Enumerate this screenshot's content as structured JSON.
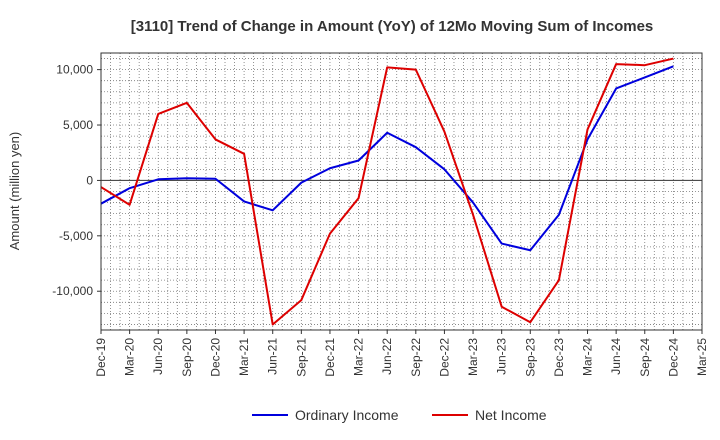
{
  "chart_data": {
    "type": "line",
    "title": "[3110]  Trend of Change in Amount (YoY) of 12Mo Moving Sum of Incomes",
    "xlabel": "",
    "ylabel": "Amount (million yen)",
    "categories": [
      "Dec-19",
      "Mar-20",
      "Jun-20",
      "Sep-20",
      "Dec-20",
      "Mar-21",
      "Jun-21",
      "Sep-21",
      "Dec-21",
      "Mar-22",
      "Jun-22",
      "Sep-22",
      "Dec-22",
      "Mar-23",
      "Jun-23",
      "Sep-23",
      "Dec-23",
      "Mar-24",
      "Jun-24",
      "Sep-24",
      "Dec-24",
      "Mar-25"
    ],
    "ylim": [
      -13500,
      11500
    ],
    "yticks": [
      10000,
      5000,
      0,
      -5000,
      -10000
    ],
    "ytick_labels": [
      "10,000",
      "5,000",
      "0",
      "-5,000",
      "-10,000"
    ],
    "grid": true,
    "legend_position": "bottom",
    "series": [
      {
        "name": "Ordinary Income",
        "color": "#0000dd",
        "values": [
          -2100,
          -700,
          100,
          200,
          150,
          -1900,
          -2700,
          -200,
          1100,
          1800,
          4300,
          3000,
          1000,
          -2000,
          -5700,
          -6300,
          -3100,
          3700,
          8300,
          9300,
          10300,
          null
        ]
      },
      {
        "name": "Net Income",
        "color": "#dd0000",
        "values": [
          -600,
          -2200,
          6000,
          7000,
          3700,
          2400,
          -13000,
          -10800,
          -4800,
          -1600,
          10200,
          10000,
          4400,
          -3100,
          -11400,
          -12800,
          -9000,
          4600,
          10500,
          10400,
          11000,
          null
        ]
      }
    ]
  }
}
